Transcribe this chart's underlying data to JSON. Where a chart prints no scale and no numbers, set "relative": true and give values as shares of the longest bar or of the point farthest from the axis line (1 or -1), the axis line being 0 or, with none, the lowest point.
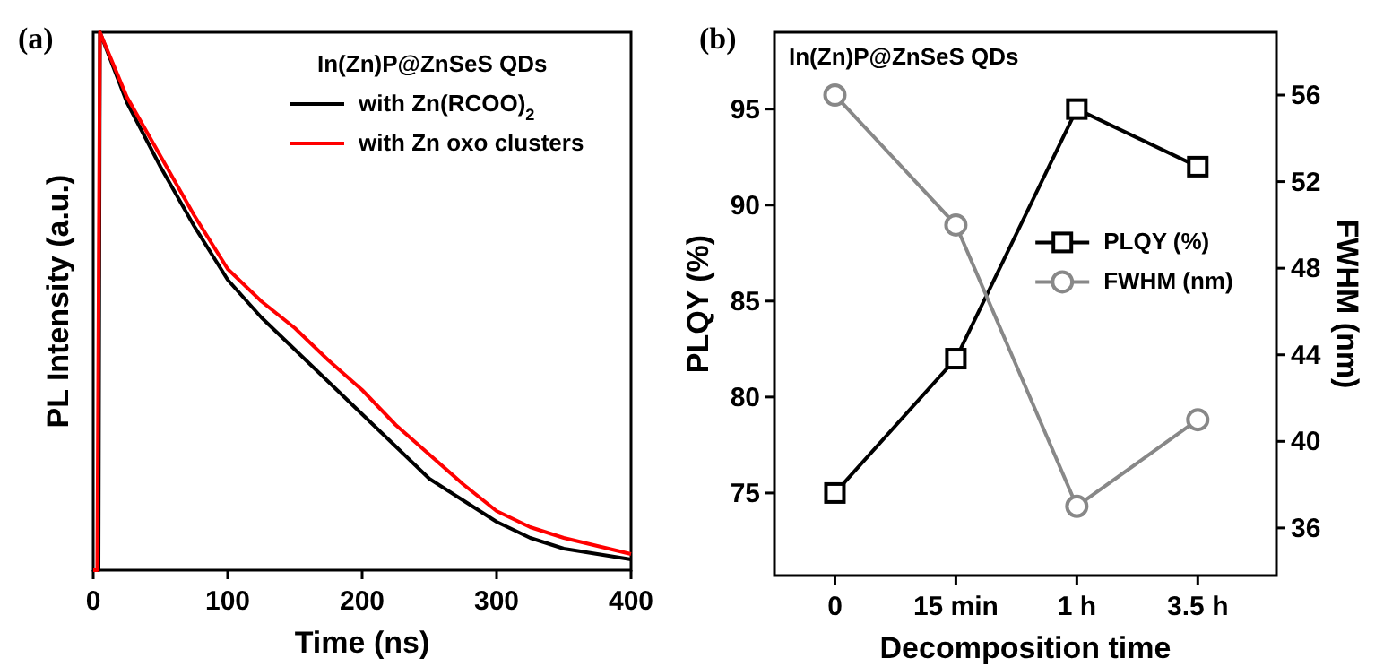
{
  "chart_data": [
    {
      "type": "line",
      "title": "(a)",
      "xlabel": "Time (ns)",
      "ylabel": "PL Intensity (a.u.)",
      "relative": true,
      "xlim": [
        0,
        400
      ],
      "xticks": [
        0,
        100,
        200,
        300,
        400
      ],
      "legend": "top right",
      "legend_title": "In(Zn)P@ZnSeS QDs",
      "grid": false,
      "series": [
        {
          "name": "with Zn(RCOO)$_{2}$",
          "color": "#000000",
          "x": [
            0,
            4,
            5,
            25,
            50,
            75,
            100,
            125,
            150,
            175,
            200,
            225,
            250,
            275,
            300,
            325,
            350,
            375,
            400
          ],
          "values": [
            0,
            0,
            1,
            0.87,
            0.75,
            0.64,
            0.54,
            0.47,
            0.41,
            0.35,
            0.29,
            0.23,
            0.17,
            0.13,
            0.09,
            0.06,
            0.04,
            0.03,
            0.02
          ]
        },
        {
          "name": "with Zn oxo clusters",
          "color": "#ff0000",
          "x": [
            0,
            3,
            5,
            25,
            50,
            75,
            100,
            125,
            150,
            175,
            200,
            225,
            250,
            275,
            300,
            325,
            350,
            375,
            400
          ],
          "values": [
            0,
            0,
            1,
            0.88,
            0.77,
            0.66,
            0.56,
            0.5,
            0.45,
            0.39,
            0.335,
            0.27,
            0.215,
            0.16,
            0.11,
            0.08,
            0.06,
            0.045,
            0.03
          ]
        }
      ]
    },
    {
      "type": "line",
      "title": "(b)",
      "xlabel": "Decomposition time",
      "ylabel": "PLQY (%)",
      "y2label": "FWHM (nm)",
      "categories": [
        "0",
        "15 min",
        "1 h",
        "3.5 h"
      ],
      "ylim": [
        70.7,
        99
      ],
      "yticks": [
        75,
        80,
        85,
        90,
        95
      ],
      "y2lim": [
        33.8,
        58.9
      ],
      "y2ticks": [
        36,
        40,
        44,
        48,
        52,
        56
      ],
      "legend": "right",
      "annotations": [
        "In(Zn)P@ZnSeS QDs"
      ],
      "grid": false,
      "series": [
        {
          "name": "PLQY (%)",
          "color": "#000000",
          "marker": "square",
          "values": [
            75,
            82,
            95,
            92
          ]
        },
        {
          "name": "FWHM (nm)",
          "color": "#888888",
          "marker": "circle",
          "axis": "y2",
          "values": [
            56,
            50,
            37,
            41
          ]
        }
      ]
    }
  ]
}
